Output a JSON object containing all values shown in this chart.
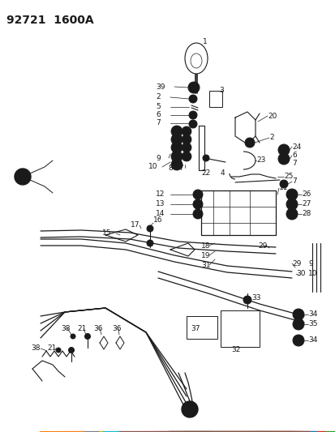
{
  "title": "92721  1600A",
  "bg_color": "#ffffff",
  "line_color": "#1a1a1a",
  "title_fontsize": 10,
  "label_fontsize": 6.5,
  "fig_width": 4.14,
  "fig_height": 5.33,
  "dpi": 100
}
